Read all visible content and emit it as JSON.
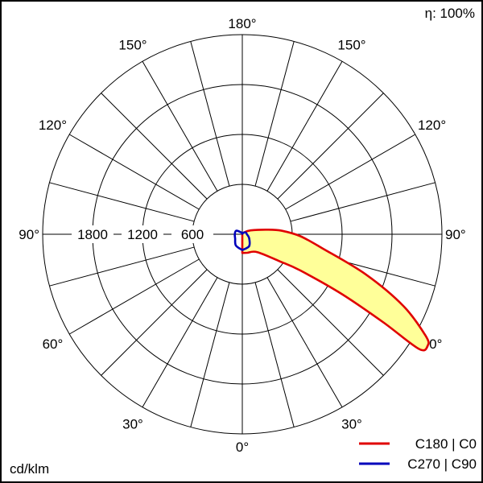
{
  "chart_data": {
    "type": "polar",
    "efficiency_label": "η: 100%",
    "unit_label": "cd/klm",
    "radial_ticks": [
      600,
      1200,
      1800
    ],
    "radial_max": 2400,
    "angle_labels": [
      {
        "text": "180°",
        "angle": 180,
        "side": "top"
      },
      {
        "text": "150°",
        "angle": 150,
        "side": "left"
      },
      {
        "text": "150°",
        "angle": 150,
        "side": "right"
      },
      {
        "text": "120°",
        "angle": 120,
        "side": "left"
      },
      {
        "text": "120°",
        "angle": 120,
        "side": "right"
      },
      {
        "text": "90°",
        "angle": 90,
        "side": "left"
      },
      {
        "text": "90°",
        "angle": 90,
        "side": "right"
      },
      {
        "text": "60°",
        "angle": 60,
        "side": "left"
      },
      {
        "text": "60°",
        "angle": 60,
        "side": "right"
      },
      {
        "text": "30°",
        "angle": 30,
        "side": "left"
      },
      {
        "text": "30°",
        "angle": 30,
        "side": "right"
      },
      {
        "text": "0°",
        "angle": 0,
        "side": "bottom"
      }
    ],
    "series": [
      {
        "name": "C180 | C0",
        "color": "#e00000",
        "fill": "#ffff99",
        "points": [
          {
            "angle": 180,
            "value": 5
          },
          {
            "angle": 140,
            "value": 25
          },
          {
            "angle": 115,
            "value": 110
          },
          {
            "angle": 100,
            "value": 320
          },
          {
            "angle": 95,
            "value": 480
          },
          {
            "angle": 88,
            "value": 700
          },
          {
            "angle": 80,
            "value": 980
          },
          {
            "angle": 72,
            "value": 1560
          },
          {
            "angle": 66,
            "value": 2120
          },
          {
            "angle": 61,
            "value": 2520
          },
          {
            "angle": 59,
            "value": 2600
          },
          {
            "angle": 57,
            "value": 2530
          },
          {
            "angle": 58,
            "value": 2000
          },
          {
            "angle": 59,
            "value": 1400
          },
          {
            "angle": 58,
            "value": 820
          },
          {
            "angle": 54,
            "value": 550
          },
          {
            "angle": 40,
            "value": 280
          },
          {
            "angle": 15,
            "value": 230
          },
          {
            "angle": 0,
            "value": 225
          }
        ]
      },
      {
        "name": "C270 | C90",
        "color": "#0000bb",
        "fill": "none",
        "points": [
          {
            "angle": 0,
            "value": 190
          },
          {
            "angle": 30,
            "value": 165
          },
          {
            "angle": 60,
            "value": 95
          },
          {
            "angle": 90,
            "value": 55
          },
          {
            "angle": 120,
            "value": 45
          },
          {
            "angle": 160,
            "value": 15
          },
          {
            "angle": 180,
            "value": 5
          },
          {
            "angle": 200,
            "value": 20
          },
          {
            "angle": 240,
            "value": 85
          },
          {
            "angle": 270,
            "value": 90
          },
          {
            "angle": 300,
            "value": 100
          },
          {
            "angle": 330,
            "value": 155
          },
          {
            "angle": 360,
            "value": 190
          }
        ]
      }
    ]
  }
}
